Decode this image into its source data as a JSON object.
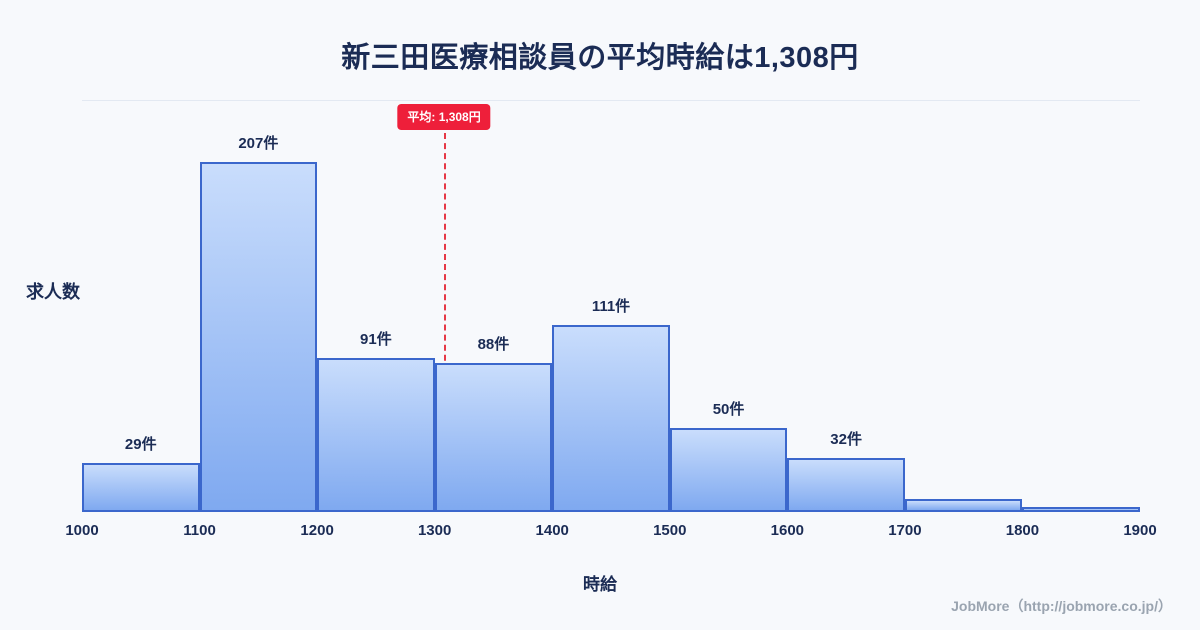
{
  "title": "新三田医療相談員の平均時給は1,308円",
  "chart_data": {
    "type": "bar",
    "title": "新三田医療相談員の平均時給は1,308円",
    "xlabel": "時給",
    "ylabel": "求人数",
    "bin_edges": [
      1000,
      1100,
      1200,
      1300,
      1400,
      1500,
      1600,
      1700,
      1800,
      1900
    ],
    "values": [
      29,
      207,
      91,
      88,
      111,
      50,
      32,
      8,
      3
    ],
    "bar_labels": [
      "29件",
      "207件",
      "91件",
      "88件",
      "111件",
      "50件",
      "32件",
      "",
      ""
    ],
    "ylim": [
      0,
      244
    ],
    "grid": false,
    "legend": "none",
    "average": {
      "value": 1308,
      "label": "平均: 1,308円"
    },
    "colors": {
      "background": "#f7f9fc",
      "bar_fill_top": "#c9ddfc",
      "bar_fill_bottom": "#7fa9f0",
      "bar_border": "#3b67cc",
      "text": "#1b2c55",
      "average_line": "#e63946",
      "badge_bg": "#ee1f3a",
      "footer_text": "#9aa4b0"
    }
  },
  "footer": {
    "credit": "JobMore（http://jobmore.co.jp/）"
  }
}
